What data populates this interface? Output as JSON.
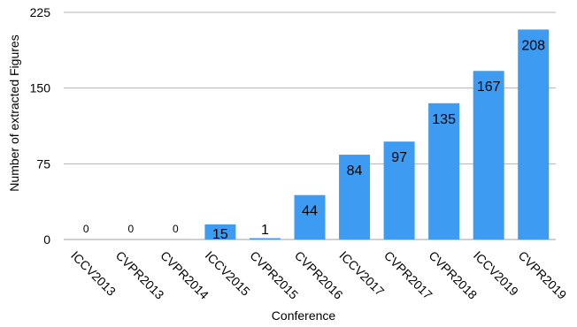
{
  "chart_data": {
    "type": "bar",
    "categories": [
      "ICCV2013",
      "CVPR2013",
      "CVPR2014",
      "ICCV2015",
      "CVPR2015",
      "CVPR2016",
      "ICCV2017",
      "CVPR2017",
      "CVPR2018",
      "ICCV2019",
      "CVPR2019"
    ],
    "values": [
      0,
      0,
      0,
      15,
      1,
      44,
      84,
      97,
      135,
      167,
      208
    ],
    "data_labels": [
      "0",
      "0",
      "0",
      "15",
      "1",
      "44",
      "84",
      "97",
      "135",
      "167",
      "208"
    ],
    "xlabel": "Conference",
    "ylabel": "Number of extracted Figures",
    "ylim": [
      0,
      225
    ],
    "yticks": [
      0,
      75,
      150,
      225
    ],
    "grid": true,
    "bar_color": "#3d9bf1",
    "grid_color": "#b3b3b3"
  }
}
